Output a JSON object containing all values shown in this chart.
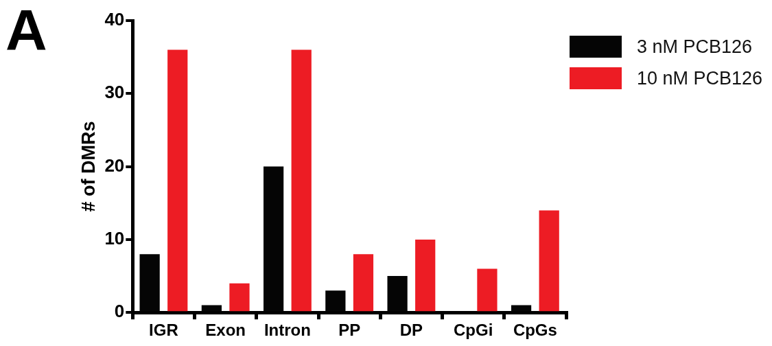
{
  "chart_data": {
    "type": "bar",
    "categories": [
      "IGR",
      "Exon",
      "Intron",
      "PP",
      "DP",
      "CpGi",
      "CpGs"
    ],
    "series": [
      {
        "name": "3 nM PCB126",
        "color": "#050505",
        "values": [
          8,
          1,
          20,
          3,
          5,
          0,
          1
        ]
      },
      {
        "name": "10 nM PCB126",
        "color": "#ed1c24",
        "values": [
          36,
          4,
          36,
          8,
          10,
          6,
          14
        ]
      }
    ],
    "ylabel": "# of DMRs",
    "ylim": [
      0,
      40
    ],
    "yticks": [
      0,
      10,
      20,
      30,
      40
    ],
    "grid": false,
    "legend": "top right",
    "annotations": [
      "A"
    ]
  }
}
